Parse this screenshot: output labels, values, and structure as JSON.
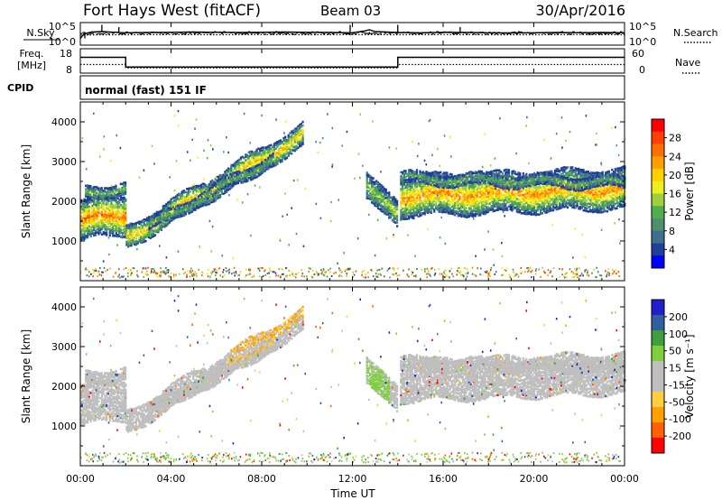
{
  "header": {
    "station": "Fort Hays West (fitACF)",
    "beam": "Beam 03",
    "date": "30/Apr/2016"
  },
  "summary_panels": {
    "nsky": {
      "left_label": "N.Sky",
      "right_label": "N.Search",
      "left_ticks": [
        "10^5",
        "10^0"
      ],
      "right_ticks": [
        "10^5",
        "10^0"
      ]
    },
    "freq": {
      "left_label_1": "Freq.",
      "left_label_2": "[MHz]",
      "right_label": "Nave",
      "left_ticks": [
        "18",
        "8"
      ],
      "right_ticks": [
        "60",
        "0"
      ]
    },
    "cpid": {
      "label": "CPID",
      "text": "normal (fast) 151 IF"
    }
  },
  "colors": {
    "power_scale": [
      "#0000ff",
      "#1f3f99",
      "#3f6f8f",
      "#4f8f6f",
      "#4faf4f",
      "#9fcf3f",
      "#efef1f",
      "#ffcf00",
      "#ff9f00",
      "#ff6f00",
      "#ff3f00",
      "#ff0000"
    ],
    "velocity_scale": [
      "#ff0000",
      "#ff6000",
      "#ff9f00",
      "#ffcf3f",
      "#bfbfbf",
      "#bfbfbf",
      "#7fcf3f",
      "#3f9f3f",
      "#2f5f9f",
      "#1f1fcf"
    ],
    "ground_scatter": "#bfbfbf"
  },
  "chart_data": [
    {
      "type": "line",
      "panel": "noise",
      "series": [
        {
          "name": "N.Sky",
          "x": [
            "00:00",
            "00:10",
            "00:30",
            "01:00",
            "01:30",
            "02:00",
            "03:00",
            "04:00",
            "05:00",
            "06:00",
            "07:00",
            "08:00",
            "09:00",
            "10:00",
            "11:00",
            "12:00",
            "12:30",
            "12:45",
            "13:00",
            "14:00",
            "15:00",
            "16:00",
            "17:00",
            "18:00",
            "19:00",
            "20:00",
            "21:00",
            "22:00",
            "23:00",
            "24:00"
          ],
          "y": [
            0.3,
            0.5,
            0.58,
            0.6,
            0.57,
            0.55,
            0.56,
            0.57,
            0.58,
            0.57,
            0.56,
            0.57,
            0.58,
            0.57,
            0.56,
            0.55,
            0.62,
            0.68,
            0.6,
            0.56,
            0.55,
            0.57,
            0.56,
            0.55,
            0.54,
            0.55,
            0.56,
            0.55,
            0.56,
            0.55
          ]
        },
        {
          "name": "N.Search",
          "x": [
            "00:00",
            "02:00",
            "04:00",
            "06:00",
            "08:00",
            "10:00",
            "12:00",
            "14:00",
            "16:00",
            "18:00",
            "20:00",
            "22:00",
            "24:00"
          ],
          "y": [
            0.45,
            0.46,
            0.47,
            0.46,
            0.47,
            0.46,
            0.47,
            0.46,
            0.47,
            0.46,
            0.46,
            0.47,
            0.46
          ]
        }
      ],
      "ylim_log": [
        0,
        5
      ]
    },
    {
      "type": "line",
      "panel": "frequency_nave",
      "series": [
        {
          "name": "Freq.",
          "x": [
            "00:00",
            "02:00",
            "02:00",
            "14:00",
            "14:00",
            "24:00"
          ],
          "y": [
            14.5,
            14.5,
            10.5,
            10.5,
            14.5,
            14.5
          ]
        },
        {
          "name": "Nave",
          "x": [
            "00:00",
            "02:00",
            "02:00",
            "14:00",
            "14:00",
            "24:00"
          ],
          "y": [
            21,
            21,
            13,
            13,
            21,
            21
          ]
        }
      ],
      "freq_ylim": [
        8,
        18
      ],
      "nave_ylim": [
        0,
        60
      ]
    },
    {
      "type": "heatmap",
      "panel": "power",
      "title": "",
      "ylabel": "Slant Range [km]",
      "colorbar_label": "Power [dB]",
      "colorbar_ticks": [
        "28",
        "24",
        "20",
        "16",
        "12",
        "8",
        "4"
      ],
      "y_ticks": [
        "4000",
        "3000",
        "2000",
        "1000"
      ],
      "ylim": [
        0,
        4500
      ],
      "xlim_hours": [
        0,
        24
      ],
      "x_ticks": [
        "00:00",
        "04:00",
        "08:00",
        "12:00",
        "16:00",
        "20:00",
        "00:00"
      ],
      "bands": [
        {
          "x": [
            0.0,
            2.0
          ],
          "y_center": [
            1500,
            1700
          ],
          "width": 450,
          "power_db": 24
        },
        {
          "x": [
            2.0,
            9.8
          ],
          "y_center": [
            1150,
            3700
          ],
          "width": 300,
          "power_db": 18
        },
        {
          "x": [
            12.6,
            14.0
          ],
          "y_center": [
            2600,
            1600
          ],
          "width": 400,
          "power_db": 14
        },
        {
          "x": [
            14.1,
            24.0
          ],
          "y_center": [
            2100,
            2400
          ],
          "width": 500,
          "power_db": 22
        }
      ]
    },
    {
      "type": "heatmap",
      "panel": "velocity",
      "title": "",
      "ylabel": "Slant Range [km]",
      "xlabel": "Time UT",
      "colorbar_label": "Velocity [m s⁻¹]",
      "colorbar_ticks": [
        "200",
        "100",
        "50",
        "15",
        "-15",
        "-50",
        "-100",
        "-200"
      ],
      "y_ticks": [
        "4000",
        "3000",
        "2000",
        "1000"
      ],
      "ylim": [
        0,
        4500
      ],
      "xlim_hours": [
        0,
        24
      ],
      "x_ticks": [
        "00:00",
        "04:00",
        "08:00",
        "12:00",
        "16:00",
        "20:00",
        "00:00"
      ]
    }
  ]
}
